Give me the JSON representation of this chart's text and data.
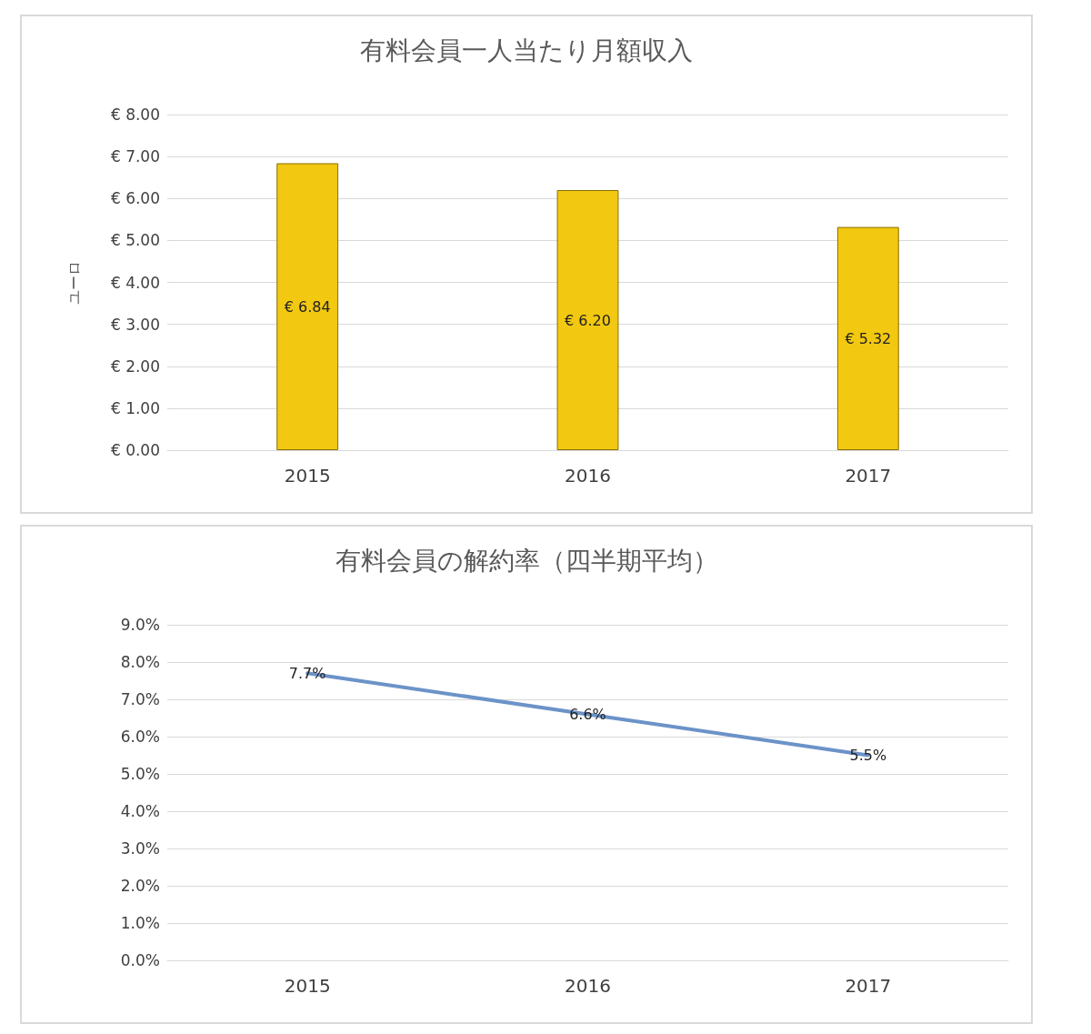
{
  "chart_data": [
    {
      "type": "bar",
      "title": "有料会員一人当たり月額収入",
      "ylabel": "ユーロ",
      "categories": [
        "2015",
        "2016",
        "2017"
      ],
      "series": [
        {
          "color": "#f2c811",
          "values": [
            6.84,
            6.2,
            5.32
          ]
        }
      ],
      "value_labels": [
        "€ 6.84",
        "€ 6.20",
        "€ 5.32"
      ],
      "ylim": [
        0,
        8
      ],
      "yticks": [
        {
          "value": 0,
          "label": "€ 0.00"
        },
        {
          "value": 1,
          "label": "€ 1.00"
        },
        {
          "value": 2,
          "label": "€ 2.00"
        },
        {
          "value": 3,
          "label": "€ 3.00"
        },
        {
          "value": 4,
          "label": "€ 4.00"
        },
        {
          "value": 5,
          "label": "€ 5.00"
        },
        {
          "value": 6,
          "label": "€ 6.00"
        },
        {
          "value": 7,
          "label": "€ 7.00"
        },
        {
          "value": 8,
          "label": "€ 8.00"
        }
      ],
      "grid": "y"
    },
    {
      "type": "line",
      "title": "有料会員の解約率（四半期平均）",
      "categories": [
        "2015",
        "2016",
        "2017"
      ],
      "series": [
        {
          "color": "#6b93c8",
          "values": [
            7.7,
            6.6,
            5.5
          ]
        }
      ],
      "value_labels": [
        "7.7%",
        "6.6%",
        "5.5%"
      ],
      "ylim": [
        0,
        9
      ],
      "yticks": [
        {
          "value": 0,
          "label": "0.0%"
        },
        {
          "value": 1,
          "label": "1.0%"
        },
        {
          "value": 2,
          "label": "2.0%"
        },
        {
          "value": 3,
          "label": "3.0%"
        },
        {
          "value": 4,
          "label": "4.0%"
        },
        {
          "value": 5,
          "label": "5.0%"
        },
        {
          "value": 6,
          "label": "6.0%"
        },
        {
          "value": 7,
          "label": "7.0%"
        },
        {
          "value": 8,
          "label": "8.0%"
        },
        {
          "value": 9,
          "label": "9.0%"
        }
      ],
      "grid": "y",
      "marker": "none",
      "line_style": "solid"
    }
  ]
}
